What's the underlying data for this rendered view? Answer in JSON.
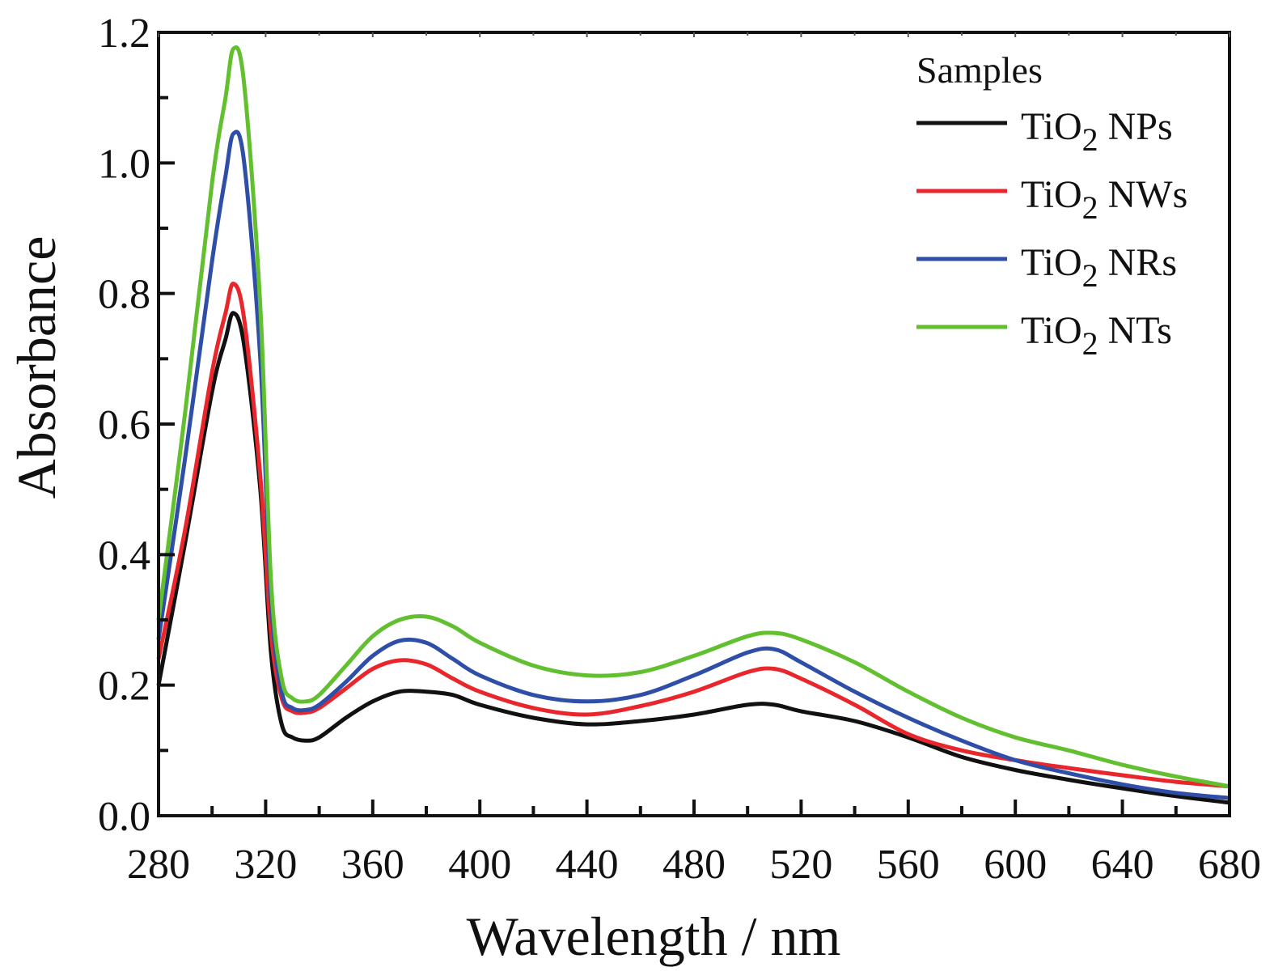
{
  "chart_data": {
    "type": "line",
    "title": "",
    "xlabel": "Wavelength / nm",
    "ylabel": "Absorbance",
    "xlim": [
      280,
      680
    ],
    "ylim": [
      0.0,
      1.2
    ],
    "xticks": [
      280,
      320,
      360,
      400,
      440,
      480,
      520,
      560,
      600,
      640,
      680
    ],
    "xtick_labels": [
      "280",
      "320",
      "360",
      "400",
      "440",
      "480",
      "520",
      "560",
      "600",
      "640",
      "680"
    ],
    "yticks": [
      0.0,
      0.2,
      0.4,
      0.6,
      0.8,
      1.0,
      1.2
    ],
    "ytick_labels": [
      "0.0",
      "0.2",
      "0.4",
      "0.6",
      "0.8",
      "1.0",
      "1.2"
    ],
    "grid": false,
    "legend": {
      "title": "Samples",
      "placement": "top-right"
    },
    "x": [
      280,
      290,
      300,
      305,
      308,
      312,
      318,
      322,
      326,
      330,
      335,
      340,
      350,
      360,
      370,
      380,
      390,
      400,
      420,
      440,
      460,
      480,
      500,
      510,
      520,
      540,
      560,
      580,
      600,
      620,
      640,
      660,
      680
    ],
    "series": [
      {
        "name": "TiO2 NPs",
        "label_main": "TiO",
        "label_sub": "2",
        "label_suffix": " NPs",
        "color": "#111111",
        "values": [
          0.2,
          0.42,
          0.65,
          0.73,
          0.77,
          0.72,
          0.5,
          0.25,
          0.14,
          0.12,
          0.115,
          0.12,
          0.15,
          0.175,
          0.19,
          0.19,
          0.185,
          0.17,
          0.15,
          0.14,
          0.145,
          0.155,
          0.17,
          0.17,
          0.16,
          0.145,
          0.12,
          0.09,
          0.07,
          0.055,
          0.042,
          0.03,
          0.02
        ]
      },
      {
        "name": "TiO2 NWs",
        "label_main": "TiO",
        "label_sub": "2",
        "label_suffix": " NWs",
        "color": "#e8262b",
        "values": [
          0.24,
          0.44,
          0.68,
          0.77,
          0.815,
          0.76,
          0.52,
          0.28,
          0.18,
          0.16,
          0.158,
          0.165,
          0.195,
          0.225,
          0.238,
          0.232,
          0.21,
          0.19,
          0.165,
          0.155,
          0.168,
          0.19,
          0.22,
          0.225,
          0.21,
          0.17,
          0.125,
          0.1,
          0.085,
          0.073,
          0.062,
          0.052,
          0.045
        ]
      },
      {
        "name": "TiO2 NRs",
        "label_main": "TiO",
        "label_sub": "2",
        "label_suffix": " NRs",
        "color": "#2e4ea8",
        "values": [
          0.27,
          0.55,
          0.85,
          0.98,
          1.045,
          1.0,
          0.7,
          0.33,
          0.19,
          0.165,
          0.162,
          0.17,
          0.205,
          0.245,
          0.268,
          0.265,
          0.24,
          0.215,
          0.185,
          0.175,
          0.185,
          0.215,
          0.25,
          0.255,
          0.235,
          0.19,
          0.15,
          0.115,
          0.085,
          0.065,
          0.048,
          0.035,
          0.027
        ]
      },
      {
        "name": "TiO2 NTs",
        "label_main": "TiO",
        "label_sub": "2",
        "label_suffix": " NTs",
        "color": "#62c030",
        "values": [
          0.3,
          0.62,
          0.97,
          1.1,
          1.175,
          1.12,
          0.78,
          0.36,
          0.21,
          0.18,
          0.175,
          0.185,
          0.23,
          0.275,
          0.3,
          0.305,
          0.29,
          0.265,
          0.23,
          0.215,
          0.22,
          0.245,
          0.275,
          0.28,
          0.27,
          0.235,
          0.19,
          0.15,
          0.12,
          0.1,
          0.078,
          0.06,
          0.045
        ]
      }
    ]
  }
}
